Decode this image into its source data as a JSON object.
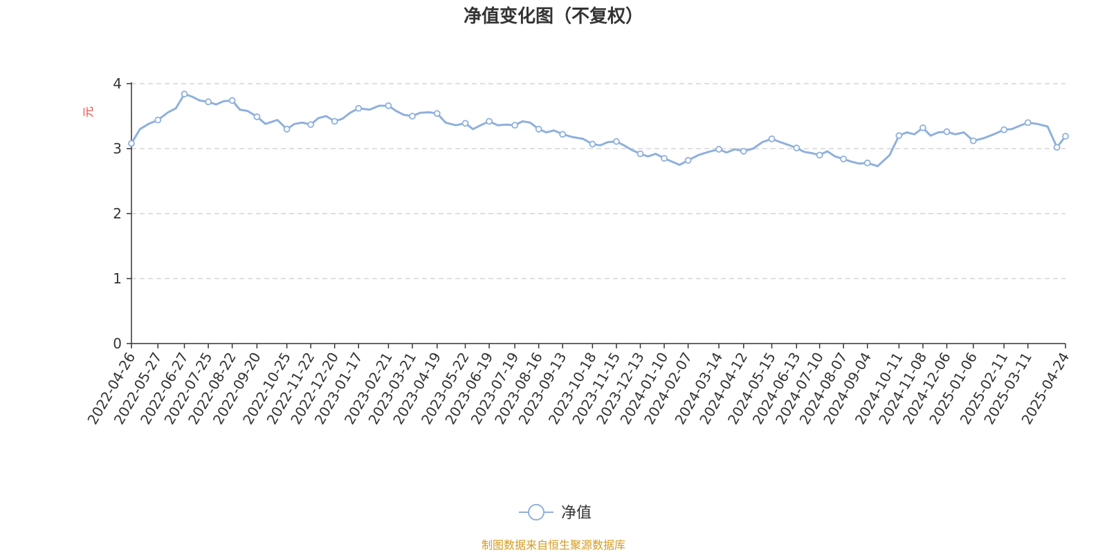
{
  "colors": {
    "series": "#8eb0dc",
    "axis": "#333333",
    "grid": "#cccccc",
    "ylabel": "#e8413c",
    "source": "#d49a1e"
  },
  "footer": {
    "source": "制图数据来自恒生聚源数据库"
  },
  "chart_data": {
    "type": "line",
    "title": "净值变化图（不复权）",
    "ylabel": "元",
    "ylim": [
      0,
      4
    ],
    "yticks": [
      "0",
      "1",
      "2",
      "3",
      "4"
    ],
    "grid": "horizontal-dashed",
    "legend": {
      "position": "bottom-center",
      "icon": "circle-line"
    },
    "x_ticks": [
      "2022-04-26",
      "2022-05-27",
      "2022-06-27",
      "2022-07-25",
      "2022-08-22",
      "2022-09-20",
      "2022-10-25",
      "2022-11-22",
      "2022-12-20",
      "2023-01-17",
      "2023-02-21",
      "2023-03-21",
      "2023-04-19",
      "2023-05-22",
      "2023-06-19",
      "2023-07-19",
      "2023-08-16",
      "2023-09-13",
      "2023-10-18",
      "2023-11-15",
      "2023-12-13",
      "2024-01-10",
      "2024-02-07",
      "2024-03-14",
      "2024-04-12",
      "2024-05-15",
      "2024-06-13",
      "2024-07-10",
      "2024-08-07",
      "2024-09-04",
      "2024-10-11",
      "2024-11-08",
      "2024-12-06",
      "2025-01-06",
      "2025-02-11",
      "2025-03-11",
      "2025-04-24"
    ],
    "series": [
      {
        "name": "净值",
        "x": [
          "2022-04-26",
          "2022-05-06",
          "2022-05-16",
          "2022-05-27",
          "2022-06-08",
          "2022-06-17",
          "2022-06-27",
          "2022-07-06",
          "2022-07-15",
          "2022-07-25",
          "2022-08-03",
          "2022-08-12",
          "2022-08-22",
          "2022-08-31",
          "2022-09-09",
          "2022-09-20",
          "2022-09-30",
          "2022-10-14",
          "2022-10-25",
          "2022-11-03",
          "2022-11-12",
          "2022-11-22",
          "2022-12-01",
          "2022-12-10",
          "2022-12-20",
          "2022-12-29",
          "2023-01-07",
          "2023-01-17",
          "2023-01-30",
          "2023-02-10",
          "2023-02-21",
          "2023-03-02",
          "2023-03-11",
          "2023-03-21",
          "2023-03-30",
          "2023-04-09",
          "2023-04-19",
          "2023-04-29",
          "2023-05-11",
          "2023-05-22",
          "2023-05-31",
          "2023-06-09",
          "2023-06-19",
          "2023-06-29",
          "2023-07-09",
          "2023-07-19",
          "2023-07-28",
          "2023-08-06",
          "2023-08-16",
          "2023-08-25",
          "2023-09-03",
          "2023-09-13",
          "2023-09-24",
          "2023-10-07",
          "2023-10-18",
          "2023-10-27",
          "2023-11-05",
          "2023-11-15",
          "2023-11-24",
          "2023-12-03",
          "2023-12-13",
          "2023-12-22",
          "2023-12-31",
          "2024-01-10",
          "2024-01-19",
          "2024-01-28",
          "2024-02-07",
          "2024-02-19",
          "2024-03-02",
          "2024-03-14",
          "2024-03-23",
          "2024-04-02",
          "2024-04-12",
          "2024-04-23",
          "2024-05-04",
          "2024-05-15",
          "2024-05-25",
          "2024-06-03",
          "2024-06-13",
          "2024-06-22",
          "2024-07-01",
          "2024-07-10",
          "2024-07-19",
          "2024-07-28",
          "2024-08-07",
          "2024-08-16",
          "2024-08-25",
          "2024-09-04",
          "2024-09-16",
          "2024-09-30",
          "2024-10-11",
          "2024-10-20",
          "2024-10-29",
          "2024-11-08",
          "2024-11-17",
          "2024-11-26",
          "2024-12-06",
          "2024-12-16",
          "2024-12-26",
          "2025-01-06",
          "2025-01-18",
          "2025-01-30",
          "2025-02-11",
          "2025-02-20",
          "2025-03-01",
          "2025-03-11",
          "2025-03-22",
          "2025-04-03",
          "2025-04-14",
          "2025-04-24"
        ],
        "values": [
          3.08,
          3.3,
          3.38,
          3.44,
          3.56,
          3.62,
          3.84,
          3.8,
          3.74,
          3.72,
          3.68,
          3.73,
          3.74,
          3.6,
          3.58,
          3.49,
          3.38,
          3.44,
          3.3,
          3.38,
          3.4,
          3.37,
          3.47,
          3.5,
          3.42,
          3.46,
          3.55,
          3.62,
          3.6,
          3.66,
          3.66,
          3.58,
          3.52,
          3.5,
          3.55,
          3.56,
          3.54,
          3.4,
          3.36,
          3.39,
          3.3,
          3.36,
          3.42,
          3.36,
          3.37,
          3.36,
          3.42,
          3.4,
          3.3,
          3.25,
          3.28,
          3.22,
          3.18,
          3.15,
          3.07,
          3.05,
          3.1,
          3.11,
          3.05,
          2.98,
          2.92,
          2.88,
          2.92,
          2.85,
          2.8,
          2.75,
          2.82,
          2.9,
          2.95,
          2.99,
          2.94,
          2.99,
          2.96,
          3.0,
          3.1,
          3.15,
          3.1,
          3.06,
          3.01,
          2.95,
          2.93,
          2.9,
          2.96,
          2.88,
          2.84,
          2.8,
          2.77,
          2.78,
          2.73,
          2.9,
          3.2,
          3.25,
          3.22,
          3.32,
          3.2,
          3.25,
          3.26,
          3.22,
          3.25,
          3.12,
          3.16,
          3.22,
          3.29,
          3.3,
          3.35,
          3.4,
          3.38,
          3.34,
          3.02,
          3.19
        ],
        "markers": [
          "2022-04-26",
          "2022-05-27",
          "2022-06-27",
          "2022-07-25",
          "2022-08-22",
          "2022-09-20",
          "2022-10-25",
          "2022-11-22",
          "2022-12-20",
          "2023-01-17",
          "2023-02-21",
          "2023-03-21",
          "2023-04-19",
          "2023-05-22",
          "2023-06-19",
          "2023-07-19",
          "2023-08-16",
          "2023-09-13",
          "2023-10-18",
          "2023-11-15",
          "2023-12-13",
          "2024-01-10",
          "2024-02-07",
          "2024-03-14",
          "2024-04-12",
          "2024-05-15",
          "2024-06-13",
          "2024-07-10",
          "2024-08-07",
          "2024-09-04",
          "2024-10-11",
          "2024-11-08",
          "2024-12-06",
          "2025-01-06",
          "2025-02-11",
          "2025-03-11",
          "2025-04-14",
          "2025-04-24"
        ]
      }
    ]
  }
}
